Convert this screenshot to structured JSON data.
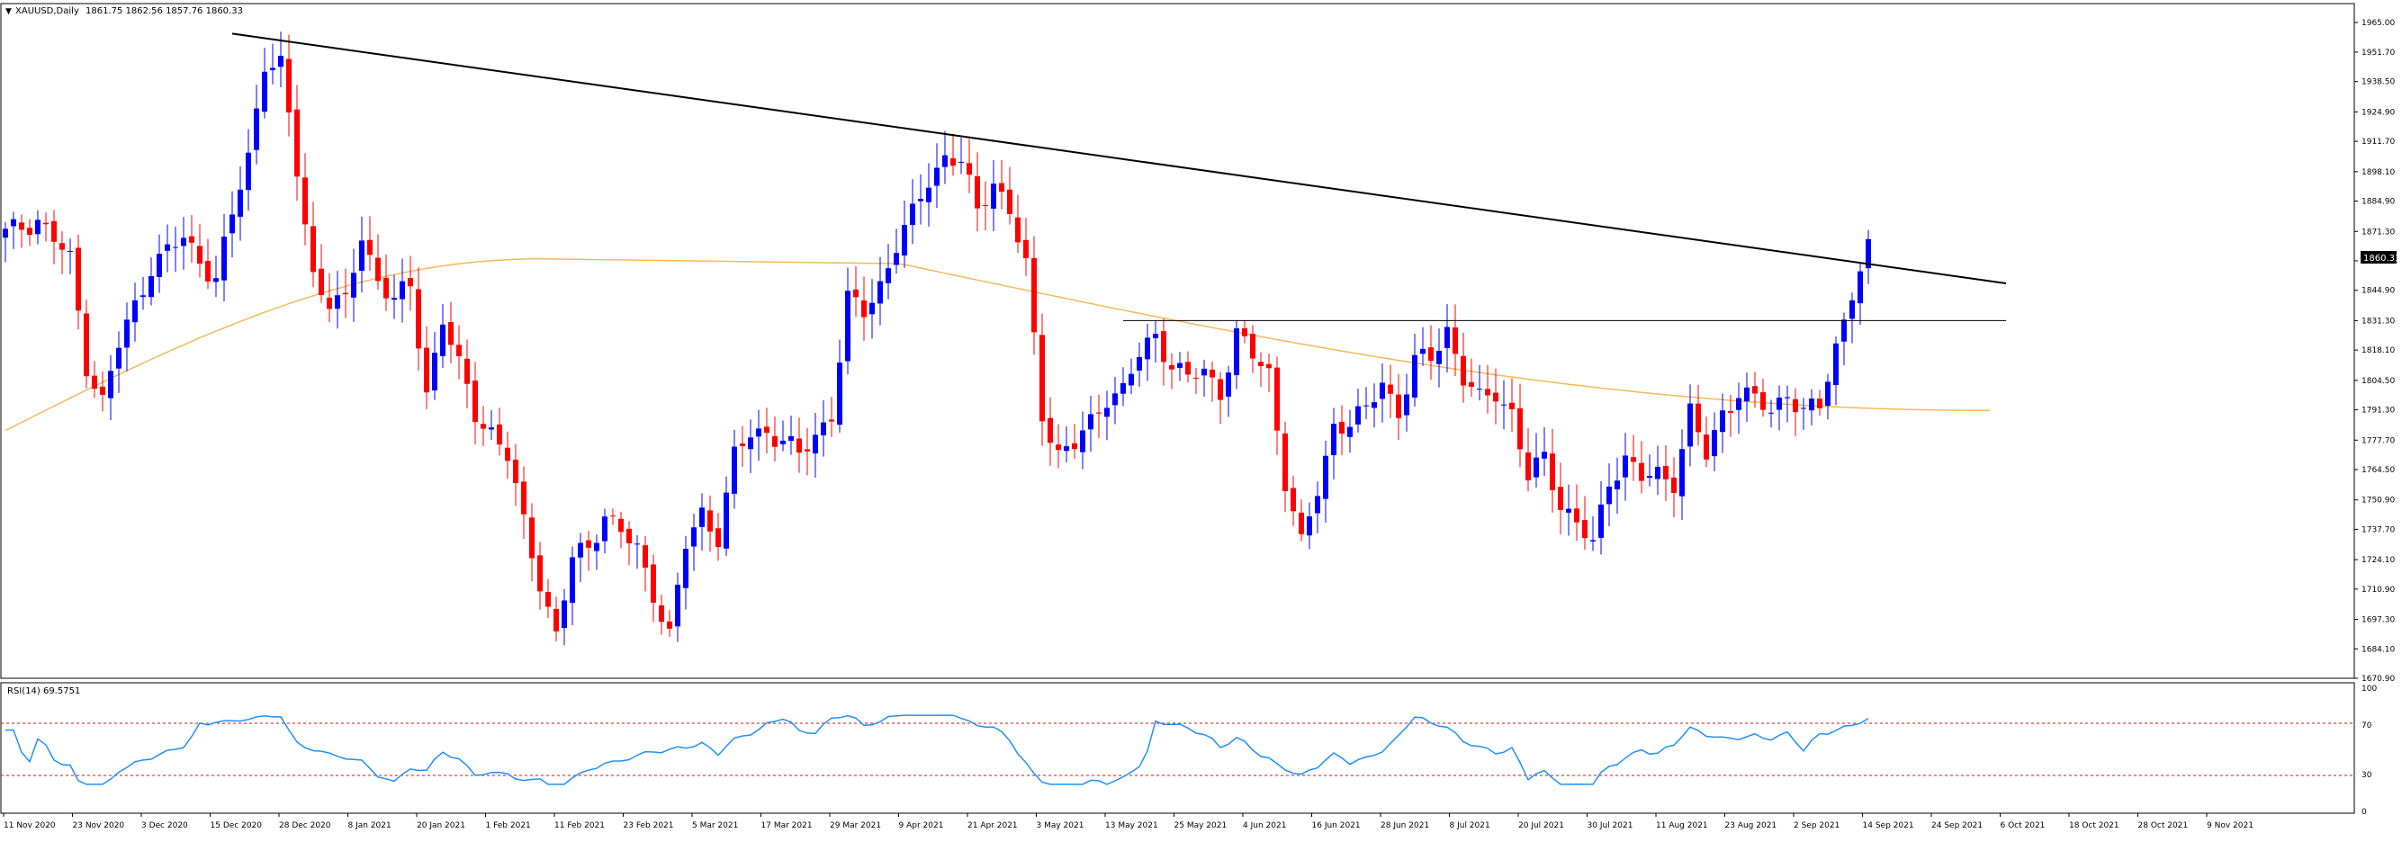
{
  "chart_data": {
    "type": "candlestick",
    "symbol_label": "XAUUSD,Daily",
    "ohlc_header": "1861.75 1862.56 1857.76 1860.33",
    "price_axis": {
      "range": [
        1670.9,
        1965.0
      ],
      "ticks": [
        "1965.00",
        "1951.70",
        "1938.50",
        "1924.90",
        "1911.70",
        "1898.10",
        "1884.90",
        "1871.30",
        "1858.10",
        "1844.90",
        "1831.30",
        "1818.10",
        "1804.50",
        "1791.30",
        "1777.70",
        "1764.50",
        "1750.90",
        "1737.70",
        "1724.10",
        "1710.90",
        "1697.30",
        "1684.10",
        "1670.90"
      ],
      "current_price": "1860.33"
    },
    "date_axis": {
      "ticks": [
        "11 Nov 2020",
        "23 Nov 2020",
        "3 Dec 2020",
        "15 Dec 2020",
        "28 Dec 2020",
        "8 Jan 2021",
        "20 Jan 2021",
        "1 Feb 2021",
        "11 Feb 2021",
        "23 Feb 2021",
        "5 Mar 2021",
        "17 Mar 2021",
        "29 Mar 2021",
        "9 Apr 2021",
        "21 Apr 2021",
        "3 May 2021",
        "13 May 2021",
        "25 May 2021",
        "4 Jun 2021",
        "16 Jun 2021",
        "28 Jun 2021",
        "8 Jul 2021",
        "20 Jul 2021",
        "30 Jul 2021",
        "11 Aug 2021",
        "23 Aug 2021",
        "2 Sep 2021",
        "14 Sep 2021",
        "24 Sep 2021",
        "6 Oct 2021",
        "18 Oct 2021",
        "28 Oct 2021",
        "9 Nov 2021"
      ]
    },
    "anchors": [
      [
        0,
        1870
      ],
      [
        4,
        1877
      ],
      [
        8,
        1858
      ],
      [
        10,
        1812
      ],
      [
        12,
        1795
      ],
      [
        14,
        1820
      ],
      [
        18,
        1856
      ],
      [
        22,
        1868
      ],
      [
        26,
        1850
      ],
      [
        28,
        1878
      ],
      [
        30,
        1905
      ],
      [
        32,
        1948
      ],
      [
        34,
        1945
      ],
      [
        36,
        1898
      ],
      [
        38,
        1852
      ],
      [
        40,
        1840
      ],
      [
        42,
        1838
      ],
      [
        44,
        1870
      ],
      [
        46,
        1850
      ],
      [
        48,
        1840
      ],
      [
        50,
        1846
      ],
      [
        52,
        1800
      ],
      [
        54,
        1832
      ],
      [
        56,
        1810
      ],
      [
        58,
        1790
      ],
      [
        60,
        1782
      ],
      [
        62,
        1770
      ],
      [
        64,
        1740
      ],
      [
        66,
        1715
      ],
      [
        68,
        1690
      ],
      [
        70,
        1724
      ],
      [
        72,
        1730
      ],
      [
        74,
        1745
      ],
      [
        76,
        1736
      ],
      [
        78,
        1728
      ],
      [
        80,
        1710
      ],
      [
        82,
        1690
      ],
      [
        84,
        1730
      ],
      [
        86,
        1745
      ],
      [
        88,
        1735
      ],
      [
        90,
        1770
      ],
      [
        92,
        1780
      ],
      [
        94,
        1782
      ],
      [
        96,
        1778
      ],
      [
        98,
        1770
      ],
      [
        100,
        1780
      ],
      [
        102,
        1790
      ],
      [
        104,
        1840
      ],
      [
        106,
        1835
      ],
      [
        108,
        1848
      ],
      [
        110,
        1865
      ],
      [
        112,
        1878
      ],
      [
        114,
        1895
      ],
      [
        116,
        1905
      ],
      [
        118,
        1902
      ],
      [
        120,
        1880
      ],
      [
        122,
        1895
      ],
      [
        124,
        1880
      ],
      [
        126,
        1855
      ],
      [
        128,
        1790
      ],
      [
        130,
        1772
      ],
      [
        132,
        1775
      ],
      [
        134,
        1785
      ],
      [
        136,
        1798
      ],
      [
        138,
        1800
      ],
      [
        140,
        1815
      ],
      [
        142,
        1825
      ],
      [
        144,
        1812
      ],
      [
        146,
        1805
      ],
      [
        148,
        1808
      ],
      [
        150,
        1800
      ],
      [
        152,
        1825
      ],
      [
        154,
        1815
      ],
      [
        156,
        1808
      ],
      [
        158,
        1760
      ],
      [
        160,
        1730
      ],
      [
        162,
        1755
      ],
      [
        164,
        1785
      ],
      [
        166,
        1785
      ],
      [
        168,
        1790
      ],
      [
        170,
        1805
      ],
      [
        172,
        1790
      ],
      [
        174,
        1812
      ],
      [
        176,
        1815
      ],
      [
        178,
        1828
      ],
      [
        180,
        1805
      ],
      [
        182,
        1795
      ],
      [
        184,
        1800
      ],
      [
        186,
        1790
      ],
      [
        188,
        1760
      ],
      [
        190,
        1770
      ],
      [
        192,
        1750
      ],
      [
        194,
        1740
      ],
      [
        196,
        1730
      ],
      [
        198,
        1760
      ],
      [
        200,
        1770
      ],
      [
        202,
        1760
      ],
      [
        204,
        1762
      ],
      [
        206,
        1760
      ],
      [
        208,
        1790
      ],
      [
        210,
        1770
      ],
      [
        212,
        1790
      ],
      [
        214,
        1800
      ],
      [
        216,
        1795
      ],
      [
        218,
        1790
      ],
      [
        220,
        1800
      ],
      [
        222,
        1790
      ],
      [
        224,
        1792
      ],
      [
        226,
        1820
      ],
      [
        228,
        1845
      ],
      [
        230,
        1862
      ]
    ],
    "candle_count": 231,
    "moving_average": {
      "start": 1782,
      "peak": 1859,
      "end": 1791
    },
    "trendline": {
      "from": [
        28,
        1960
      ],
      "to": [
        247,
        1848
      ],
      "color": "#000000"
    },
    "resistance_line": {
      "level": 1831.3,
      "from_index": 138,
      "to_index": 247
    },
    "rsi": {
      "label": "RSI(14) 69.5751",
      "axis_ticks": [
        "100",
        "70",
        "30",
        "0"
      ],
      "overbought": 70,
      "oversold": 30,
      "range": [
        0,
        100
      ]
    },
    "colors": {
      "bull": "#0000ff",
      "bear": "#ff0000",
      "ma": "#f5b95a",
      "rsi": "#1e90ff",
      "level_line": "#ff0000",
      "grid_border": "#000000"
    }
  }
}
